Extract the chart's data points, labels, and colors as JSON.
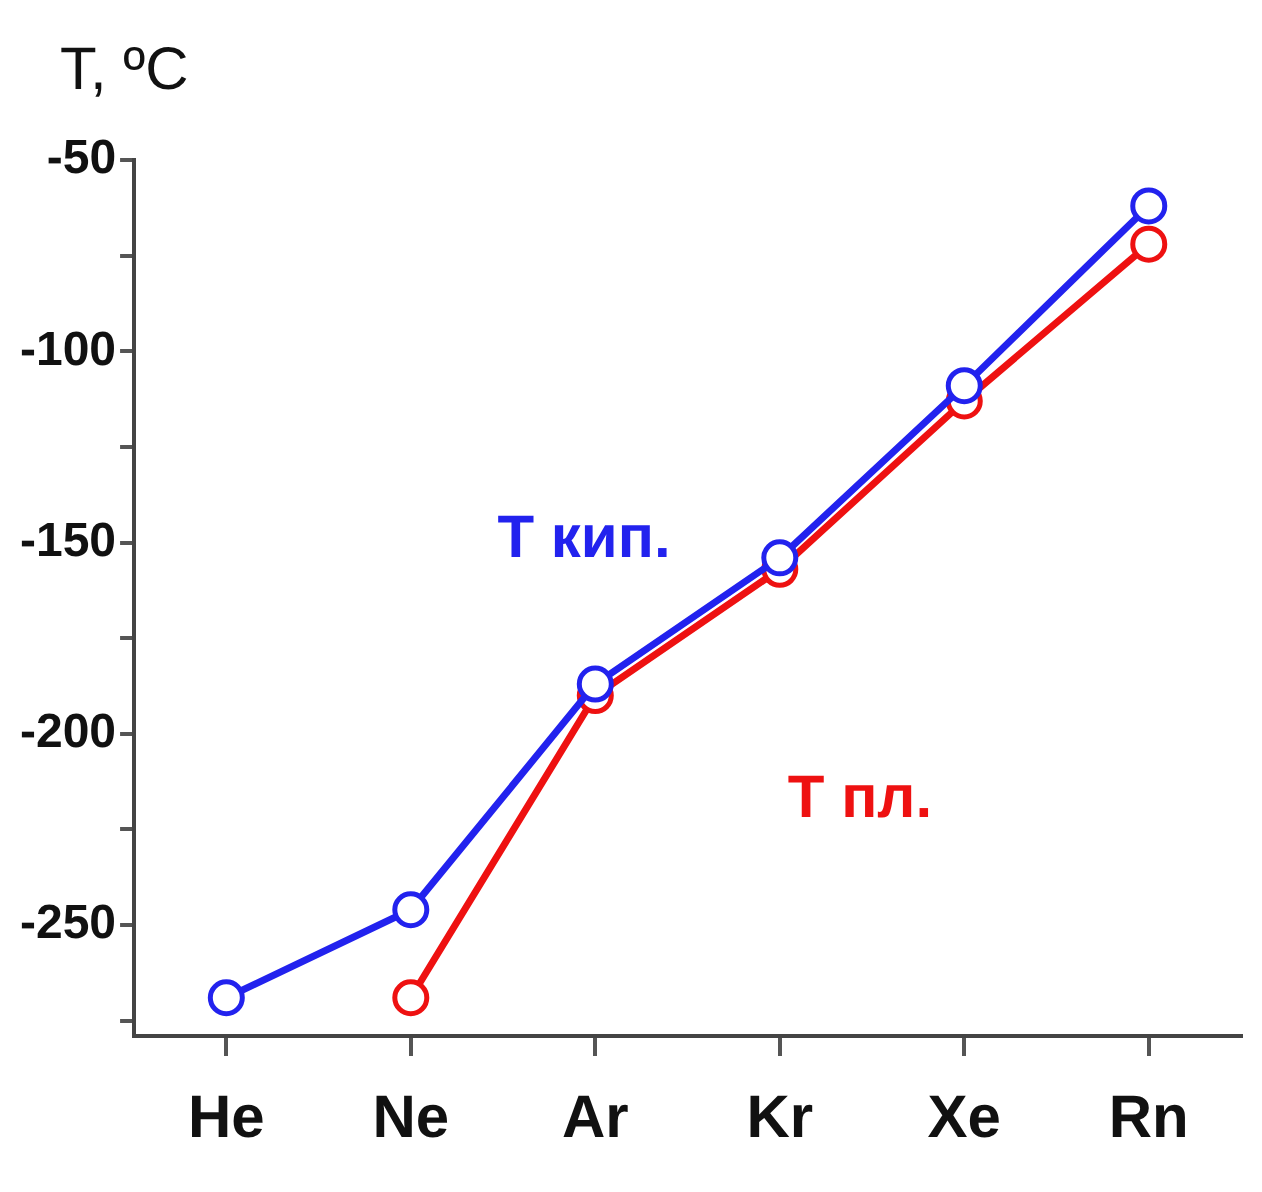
{
  "chart_data": {
    "type": "line",
    "ylabel": "T, ºC",
    "categories": [
      "He",
      "Ne",
      "Ar",
      "Kr",
      "Xe",
      "Rn"
    ],
    "series": [
      {
        "name": "T кип.",
        "color": "#2222ee",
        "values": [
          -269,
          -246,
          -187,
          -154,
          -109,
          -62
        ]
      },
      {
        "name": "T пл.",
        "color": "#ee1111",
        "values": [
          null,
          -269,
          -190,
          -157,
          -113,
          -72
        ]
      }
    ],
    "ylim": [
      -279,
      -50
    ],
    "yticks": [
      {
        "value": -275,
        "label": null
      },
      -250,
      {
        "value": -225,
        "label": null
      },
      -200,
      {
        "value": -175,
        "label": null
      },
      -150,
      {
        "value": -125,
        "label": null
      },
      -100,
      {
        "value": -75,
        "label": null
      },
      -50
    ],
    "grid": false,
    "legend": false,
    "marker": "circle",
    "line_style": "solid"
  }
}
